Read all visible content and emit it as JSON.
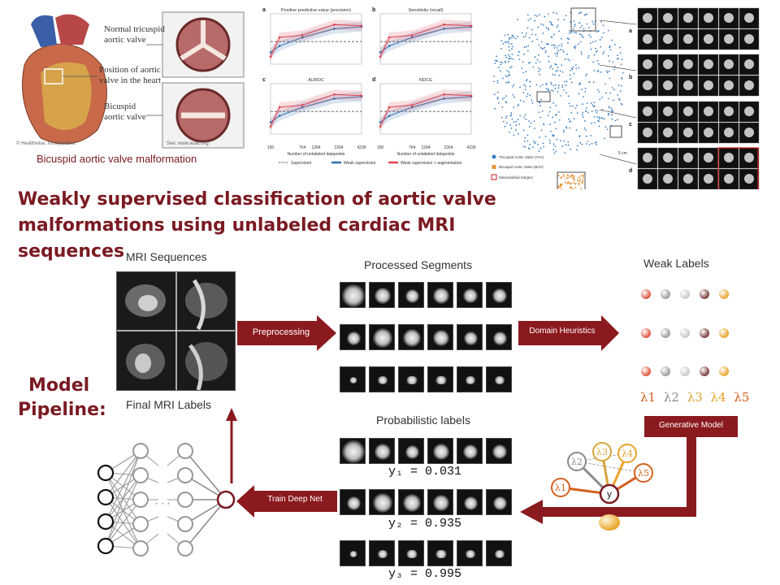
{
  "title": "Weakly supervised classification of aortic valve malformations using unlabeled cardiac MRI sequences",
  "heart_panel": {
    "caption": "Bicuspid aortic valve malformation",
    "normal_label_1": "Normal tricuspid",
    "normal_label_2": "aortic valve",
    "position_label_1": "Position of aortic",
    "position_label_2": "valve in the heart",
    "bicuspid_label_1": "Bicuspid",
    "bicuspid_label_2": "aortic valve",
    "credit": "© Healthwise, Incorporated",
    "credit2": "See: www.aoac.org"
  },
  "charts_panel": {
    "panels": [
      {
        "letter": "a",
        "title": "Positive predictive value (precision)"
      },
      {
        "letter": "b",
        "title": "Sensitivity (recall)"
      },
      {
        "letter": "c",
        "title": "AUROC"
      },
      {
        "letter": "d",
        "title": "NDCG"
      }
    ],
    "x_ticks": [
      "100",
      "764",
      "1264",
      "2264",
      "4239"
    ],
    "xlabel": "Number of unlabeled datapoints",
    "legend": [
      "Supervised",
      "Weak supervision",
      "Weak supervision + augmentation"
    ],
    "colors": {
      "weak": "#2f6fb0",
      "aug": "#e04050",
      "supervised": "#333333"
    }
  },
  "tsne_panel": {
    "row_letters": [
      "a",
      "b",
      "c",
      "d"
    ],
    "legend": [
      "Tricuspid Aortic Valve (TAV)",
      "Bicuspid Aortic Valve (BAV)",
      "Misclassified Subject"
    ],
    "scale": "5 cm",
    "colors": {
      "tav": "#3a7fc0",
      "bav": "#e8943a",
      "misclassified": "#cc2222"
    }
  },
  "pipeline": {
    "label_line1": "Model",
    "label_line2": "Pipeline:",
    "mri_title": "MRI  Sequences",
    "processed_title": "Processed Segments",
    "weak_title": "Weak Labels",
    "final_title": "Final MRI  Labels",
    "prob_title": "Probabilistic labels",
    "preprocessing": "Preprocessing",
    "domain": "Domain  Heuristics",
    "generative": "Generative Model",
    "train": "Train Deep Net",
    "lambdas": [
      "λ1",
      "λ2",
      "λ3",
      "λ4",
      "λ5"
    ],
    "lambda_colors": [
      "#d4601f",
      "#8a8a8a",
      "#d8a43a",
      "#e8a428",
      "#d4601f"
    ],
    "weak_ball_colors": [
      "#e0523a",
      "#9a9a9a",
      "#c8c8c8",
      "#7a3a3a",
      "#e8a428"
    ],
    "probs": [
      "y₁ = 0.031",
      "y₂ = 0.935",
      "y₃ = 0.995"
    ],
    "graph_node": "y",
    "graph_lambdas": [
      "λ1",
      "λ2",
      "λ3",
      "λ4",
      "λ5"
    ],
    "accent": "#7a1a22"
  }
}
